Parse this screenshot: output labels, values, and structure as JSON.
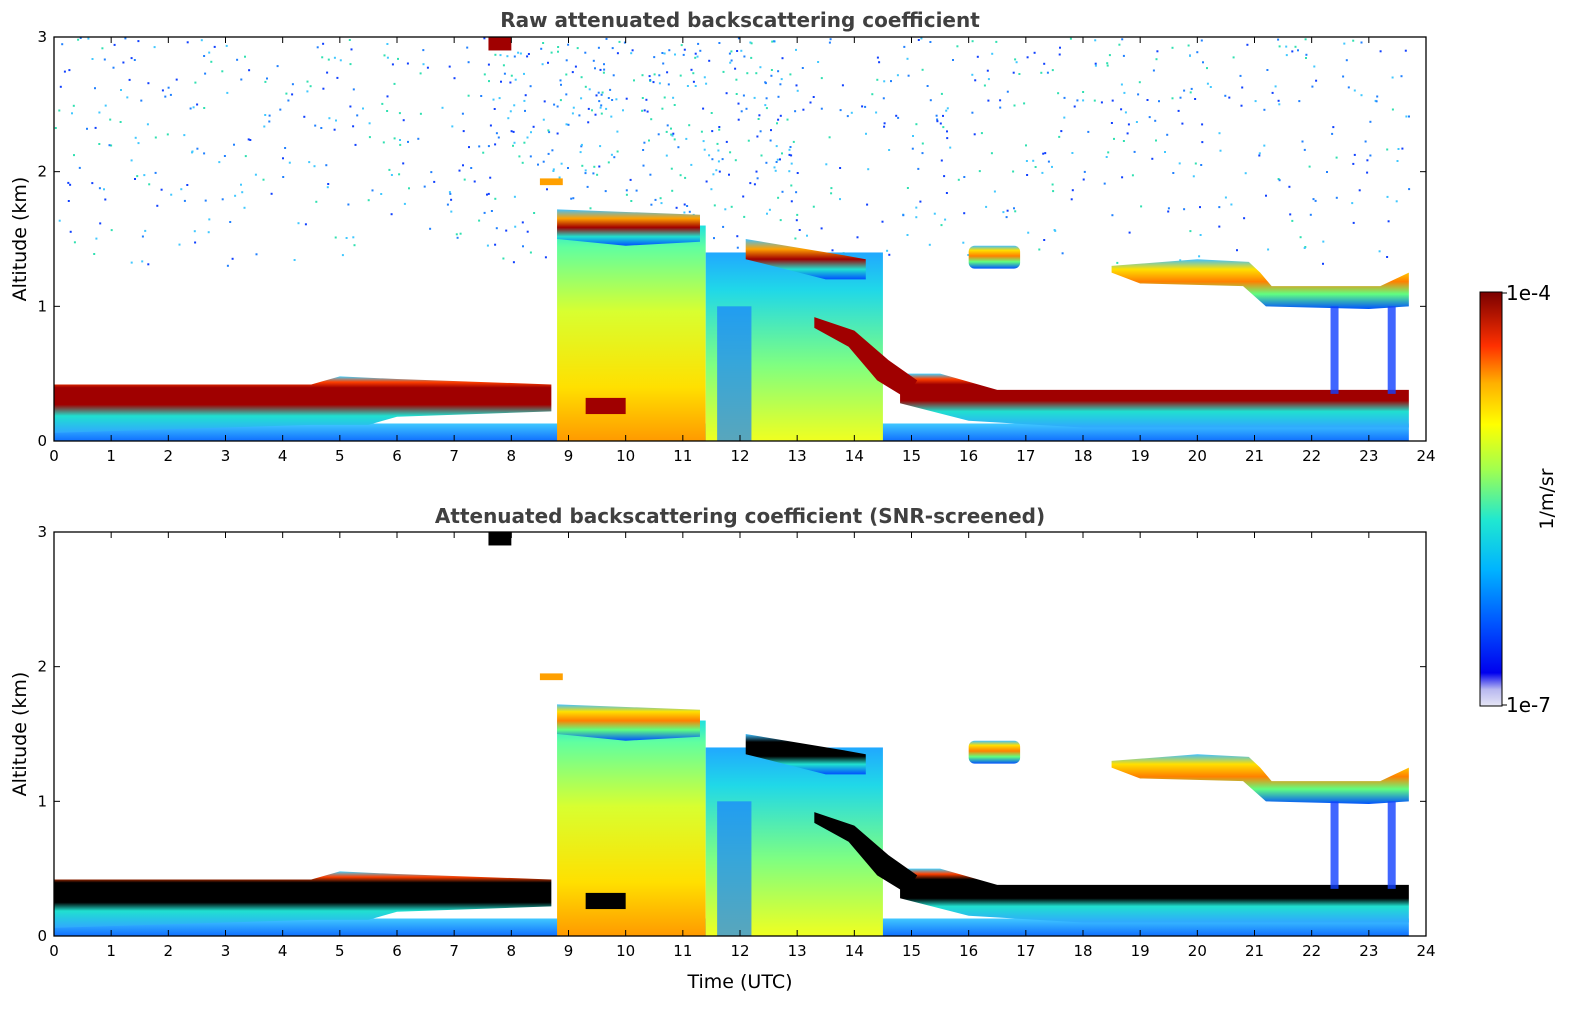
{
  "chart_data": [
    {
      "type": "heatmap",
      "title": "Raw attenuated backscattering coefficient",
      "xlabel": "",
      "ylabel": "Altitude (km)",
      "xlim": [
        0,
        24
      ],
      "ylim": [
        0,
        3
      ],
      "xticks": [
        "0",
        "1",
        "2",
        "3",
        "4",
        "5",
        "6",
        "7",
        "8",
        "9",
        "10",
        "11",
        "12",
        "13",
        "14",
        "15",
        "16",
        "17",
        "18",
        "19",
        "20",
        "21",
        "22",
        "23",
        "24"
      ],
      "yticks": [
        "0",
        "1",
        "2",
        "3"
      ],
      "layers": [
        {
          "name": "boundary layer",
          "x": [
            0,
            8.7
          ],
          "y": [
            0.1,
            0.4
          ],
          "level": "high"
        },
        {
          "name": "boundary layer",
          "x": [
            14.8,
            23.7
          ],
          "y": [
            0.12,
            0.35
          ],
          "level": "high"
        },
        {
          "name": "aerosol column",
          "x": [
            8.8,
            11.3
          ],
          "y": [
            0,
            1.6
          ],
          "level": "medium"
        },
        {
          "name": "aerosol column",
          "x": [
            11.3,
            14.5
          ],
          "y": [
            0,
            1.4
          ],
          "level": "medium-low"
        },
        {
          "name": "cloud layer",
          "x": [
            9,
            11.3
          ],
          "y": [
            1.45,
            1.65
          ],
          "level": "high"
        },
        {
          "name": "cloud layer",
          "x": [
            12,
            14
          ],
          "y": [
            1.25,
            1.45
          ],
          "level": "high"
        },
        {
          "name": "cloud layer",
          "x": [
            16,
            16.9
          ],
          "y": [
            1.3,
            1.4
          ],
          "level": "medium-high"
        },
        {
          "name": "cloud layer",
          "x": [
            18.5,
            23.7
          ],
          "y": [
            1.0,
            1.3
          ],
          "level": "medium-high"
        },
        {
          "name": "descending layer",
          "x": [
            13.3,
            15
          ],
          "y": [
            0.3,
            0.9
          ],
          "level": "high"
        }
      ],
      "background": "sparse noise above 1.5 km"
    },
    {
      "type": "heatmap",
      "title": "Attenuated backscattering coefficient (SNR-screened)",
      "xlabel": "Time (UTC)",
      "ylabel": "Altitude (km)",
      "xlim": [
        0,
        24
      ],
      "ylim": [
        0,
        3
      ],
      "xticks": [
        "0",
        "1",
        "2",
        "3",
        "4",
        "5",
        "6",
        "7",
        "8",
        "9",
        "10",
        "11",
        "12",
        "13",
        "14",
        "15",
        "16",
        "17",
        "18",
        "19",
        "20",
        "21",
        "22",
        "23",
        "24"
      ],
      "yticks": [
        "0",
        "1",
        "2",
        "3"
      ],
      "layers": [
        {
          "name": "boundary layer (saturated)",
          "x": [
            0,
            8.7
          ],
          "y": [
            0.1,
            0.4
          ],
          "level": "above range"
        },
        {
          "name": "boundary layer (saturated)",
          "x": [
            14.8,
            23.7
          ],
          "y": [
            0.12,
            0.35
          ],
          "level": "above range"
        },
        {
          "name": "aerosol column",
          "x": [
            8.8,
            11.3
          ],
          "y": [
            0,
            1.6
          ],
          "level": "medium"
        },
        {
          "name": "aerosol column",
          "x": [
            11.3,
            14.5
          ],
          "y": [
            0,
            1.4
          ],
          "level": "medium-low"
        },
        {
          "name": "cloud layer",
          "x": [
            9,
            11.3
          ],
          "y": [
            1.45,
            1.65
          ],
          "level": "high"
        },
        {
          "name": "cloud layer",
          "x": [
            12,
            14
          ],
          "y": [
            1.25,
            1.45
          ],
          "level": "above range"
        },
        {
          "name": "cloud layer",
          "x": [
            16,
            16.9
          ],
          "y": [
            1.3,
            1.4
          ],
          "level": "medium-high"
        },
        {
          "name": "cloud layer",
          "x": [
            18.5,
            23.7
          ],
          "y": [
            1.0,
            1.3
          ],
          "level": "medium-high"
        }
      ],
      "background": "screened (white)"
    }
  ],
  "colorbar": {
    "label": "1/m/sr",
    "max_label": "1e-4",
    "min_label": "1e-7",
    "range": [
      1e-07,
      0.0001
    ],
    "scale": "log",
    "colormap": "jet"
  }
}
